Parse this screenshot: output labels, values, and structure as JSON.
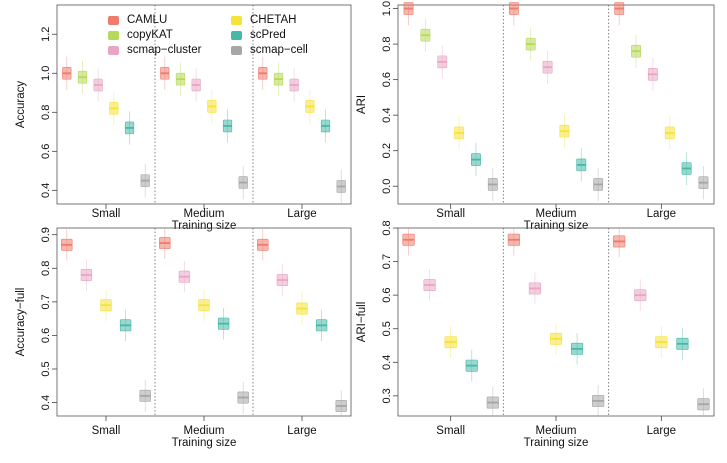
{
  "legend": {
    "items": [
      {
        "key": "CAMLU",
        "label": "CAMLU",
        "color": "#ee7b6c"
      },
      {
        "key": "copyKAT",
        "label": "copyKAT",
        "color": "#b7d85a"
      },
      {
        "key": "scmap_cluster",
        "label": "scmap−cluster",
        "color": "#e8a6c4"
      },
      {
        "key": "CHETAH",
        "label": "CHETAH",
        "color": "#f5e23a"
      },
      {
        "key": "scPred",
        "label": "scPred",
        "color": "#46b8a8"
      },
      {
        "key": "scmap_cell",
        "label": "scmap−cell",
        "color": "#a6a6a6"
      }
    ]
  },
  "chart_data": [
    {
      "type": "box",
      "ylabel": "Accuracy",
      "xlabel": "Training size",
      "categories": [
        "Small",
        "Medium",
        "Large"
      ],
      "ylim": [
        0.33,
        1.35
      ],
      "yticks": [
        0.4,
        0.6,
        0.8,
        1.0,
        1.2
      ],
      "ytick_labels": [
        "0.4",
        "0.6",
        "0.8",
        "1.0",
        "1.2"
      ],
      "series": [
        {
          "name": "CAMLU",
          "values": [
            1.0,
            1.0,
            1.0
          ]
        },
        {
          "name": "copyKAT",
          "values": [
            0.98,
            0.97,
            0.97
          ]
        },
        {
          "name": "scmap_cluster",
          "values": [
            0.94,
            0.94,
            0.94
          ]
        },
        {
          "name": "CHETAH",
          "values": [
            0.82,
            0.83,
            0.83
          ]
        },
        {
          "name": "scPred",
          "values": [
            0.72,
            0.73,
            0.73
          ]
        },
        {
          "name": "scmap_cell",
          "values": [
            0.45,
            0.44,
            0.42
          ]
        }
      ]
    },
    {
      "type": "box",
      "ylabel": "ARI",
      "xlabel": "Training size",
      "categories": [
        "Small",
        "Medium",
        "Large"
      ],
      "ylim": [
        -0.1,
        1.02
      ],
      "yticks": [
        0.0,
        0.2,
        0.4,
        0.6,
        0.8,
        1.0
      ],
      "ytick_labels": [
        "0.0",
        "0.2",
        "0.4",
        "0.6",
        "0.8",
        "1.0"
      ],
      "series": [
        {
          "name": "CAMLU",
          "values": [
            1.0,
            1.0,
            1.0
          ]
        },
        {
          "name": "copyKAT",
          "values": [
            0.85,
            0.8,
            0.76
          ]
        },
        {
          "name": "scmap_cluster",
          "values": [
            0.7,
            0.67,
            0.63
          ]
        },
        {
          "name": "CHETAH",
          "values": [
            0.3,
            0.31,
            0.3
          ]
        },
        {
          "name": "scPred",
          "values": [
            0.15,
            0.12,
            0.1
          ]
        },
        {
          "name": "scmap_cell",
          "values": [
            0.01,
            0.01,
            0.02
          ]
        }
      ]
    },
    {
      "type": "box",
      "ylabel": "Accuracy−full",
      "xlabel": "Training size",
      "categories": [
        "Small",
        "Medium",
        "Large"
      ],
      "ylim": [
        0.36,
        0.92
      ],
      "yticks": [
        0.4,
        0.5,
        0.6,
        0.7,
        0.8,
        0.9
      ],
      "ytick_labels": [
        "0.4",
        "0.5",
        "0.6",
        "0.7",
        "0.8",
        "0.9"
      ],
      "series": [
        {
          "name": "CAMLU",
          "values": [
            0.87,
            0.875,
            0.87
          ]
        },
        {
          "name": "scmap_cluster",
          "values": [
            0.78,
            0.775,
            0.765
          ]
        },
        {
          "name": "CHETAH",
          "values": [
            0.69,
            0.69,
            0.68
          ]
        },
        {
          "name": "scPred",
          "values": [
            0.63,
            0.635,
            0.63
          ]
        },
        {
          "name": "scmap_cell",
          "values": [
            0.42,
            0.415,
            0.39
          ]
        }
      ]
    },
    {
      "type": "box",
      "ylabel": "ARI−full",
      "xlabel": "Training size",
      "categories": [
        "Small",
        "Medium",
        "Large"
      ],
      "ylim": [
        0.24,
        0.8
      ],
      "yticks": [
        0.3,
        0.4,
        0.5,
        0.6,
        0.7,
        0.8
      ],
      "ytick_labels": [
        "0.3",
        "0.4",
        "0.5",
        "0.6",
        "0.7",
        "0.8"
      ],
      "series": [
        {
          "name": "CAMLU",
          "values": [
            0.765,
            0.765,
            0.76
          ]
        },
        {
          "name": "scmap_cluster",
          "values": [
            0.63,
            0.62,
            0.6
          ]
        },
        {
          "name": "CHETAH",
          "values": [
            0.46,
            0.47,
            0.46
          ]
        },
        {
          "name": "scPred",
          "values": [
            0.39,
            0.44,
            0.455
          ]
        },
        {
          "name": "scmap_cell",
          "values": [
            0.28,
            0.285,
            0.275
          ]
        }
      ]
    }
  ]
}
